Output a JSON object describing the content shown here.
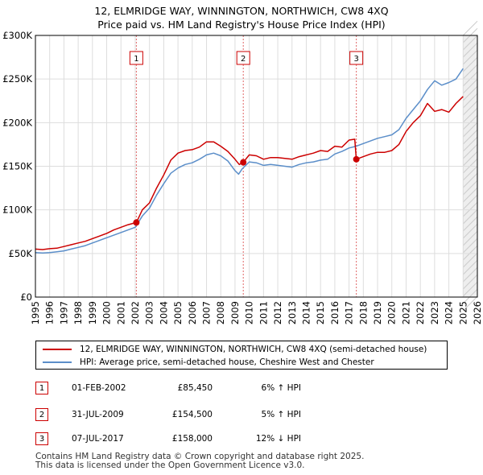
{
  "chart_data": {
    "type": "line",
    "title": "12, ELMRIDGE WAY, WINNINGTON, NORTHWICH, CW8 4XQ",
    "subtitle": "Price paid vs. HM Land Registry's House Price Index (HPI)",
    "xlim": [
      1995,
      2026
    ],
    "ylim": [
      0,
      300000
    ],
    "x_ticks": [
      1995,
      1996,
      1997,
      1998,
      1999,
      2000,
      2001,
      2002,
      2003,
      2004,
      2005,
      2006,
      2007,
      2008,
      2009,
      2010,
      2011,
      2012,
      2013,
      2014,
      2015,
      2016,
      2017,
      2018,
      2019,
      2020,
      2021,
      2022,
      2023,
      2024,
      2025,
      2026
    ],
    "x_tick_labels": [
      "1995",
      "1996",
      "1997",
      "1998",
      "1999",
      "2000",
      "2001",
      "2002",
      "2003",
      "2004",
      "2005",
      "2006",
      "2007",
      "2008",
      "2009",
      "2010",
      "2011",
      "2012",
      "2013",
      "2014",
      "2015",
      "2016",
      "2017",
      "2018",
      "2019",
      "2020",
      "2021",
      "2022",
      "2023",
      "2024",
      "2025",
      "2026"
    ],
    "y_ticks": [
      0,
      50000,
      100000,
      150000,
      200000,
      250000,
      300000
    ],
    "y_tick_labels": [
      "£0",
      "£50K",
      "£100K",
      "£150K",
      "£200K",
      "£250K",
      "£300K"
    ],
    "grid": true,
    "shaded_future_from": 2025.0,
    "series": [
      {
        "name": "12, ELMRIDGE WAY, WINNINGTON, NORTHWICH, CW8 4XQ (semi-detached house)",
        "color": "#cc0000",
        "x": [
          1995.0,
          1995.5,
          1996.0,
          1996.5,
          1997.0,
          1997.5,
          1998.0,
          1998.5,
          1999.0,
          1999.5,
          2000.0,
          2000.5,
          2001.0,
          2001.5,
          2002.08,
          2002.5,
          2003.0,
          2003.5,
          2004.0,
          2004.5,
          2005.0,
          2005.5,
          2006.0,
          2006.5,
          2007.0,
          2007.5,
          2008.0,
          2008.5,
          2009.0,
          2009.3,
          2009.58,
          2010.0,
          2010.5,
          2011.0,
          2011.5,
          2012.0,
          2012.5,
          2013.0,
          2013.5,
          2014.0,
          2014.5,
          2015.0,
          2015.5,
          2016.0,
          2016.5,
          2017.0,
          2017.4,
          2017.51,
          2018.0,
          2018.5,
          2019.0,
          2019.5,
          2020.0,
          2020.5,
          2021.0,
          2021.5,
          2022.0,
          2022.5,
          2023.0,
          2023.5,
          2024.0,
          2024.5,
          2025.0
        ],
        "y": [
          55000,
          54500,
          55500,
          56000,
          58000,
          60000,
          62000,
          64000,
          67000,
          70000,
          73000,
          77000,
          80000,
          83000,
          85450,
          100000,
          108000,
          125000,
          140000,
          157000,
          165000,
          168000,
          169000,
          172000,
          178000,
          178000,
          173000,
          167000,
          158000,
          152000,
          154500,
          163000,
          162000,
          158000,
          160000,
          160000,
          159000,
          158000,
          161000,
          163000,
          165000,
          168000,
          167000,
          173000,
          172000,
          180000,
          181000,
          158000,
          161000,
          164000,
          166000,
          166000,
          168000,
          175000,
          190000,
          200000,
          208000,
          222000,
          213000,
          215000,
          212000,
          222000,
          230000
        ]
      },
      {
        "name": "HPI: Average price, semi-detached house, Cheshire West and Chester",
        "color": "#5b8ec9",
        "x": [
          1995.0,
          1995.5,
          1996.0,
          1996.5,
          1997.0,
          1997.5,
          1998.0,
          1998.5,
          1999.0,
          1999.5,
          2000.0,
          2000.5,
          2001.0,
          2001.5,
          2002.0,
          2002.5,
          2003.0,
          2003.5,
          2004.0,
          2004.5,
          2005.0,
          2005.5,
          2006.0,
          2006.5,
          2007.0,
          2007.5,
          2008.0,
          2008.5,
          2009.0,
          2009.25,
          2009.5,
          2010.0,
          2010.5,
          2011.0,
          2011.5,
          2012.0,
          2012.5,
          2013.0,
          2013.5,
          2014.0,
          2014.5,
          2015.0,
          2015.5,
          2016.0,
          2016.5,
          2017.0,
          2017.5,
          2018.0,
          2018.5,
          2019.0,
          2019.5,
          2020.0,
          2020.5,
          2021.0,
          2021.5,
          2022.0,
          2022.5,
          2023.0,
          2023.5,
          2024.0,
          2024.5,
          2025.0
        ],
        "y": [
          51000,
          50500,
          51000,
          52000,
          53000,
          55000,
          57000,
          59000,
          62000,
          65000,
          68000,
          71000,
          74000,
          77000,
          80000,
          93000,
          102000,
          117000,
          130000,
          142000,
          148000,
          152000,
          154000,
          158000,
          163000,
          165000,
          162000,
          156000,
          145000,
          141000,
          147000,
          155000,
          154000,
          151000,
          152000,
          151000,
          150000,
          149000,
          152000,
          154000,
          155000,
          157000,
          158000,
          164000,
          167000,
          171000,
          173000,
          176000,
          179000,
          182000,
          184000,
          186000,
          192000,
          205000,
          215000,
          225000,
          238000,
          248000,
          243000,
          246000,
          250000,
          262000
        ]
      }
    ],
    "markers": [
      {
        "label": "1",
        "x": 2002.08,
        "y": 85450
      },
      {
        "label": "2",
        "x": 2009.58,
        "y": 154500
      },
      {
        "label": "3",
        "x": 2017.51,
        "y": 158000
      }
    ]
  },
  "legend": {
    "property_label": "12, ELMRIDGE WAY, WINNINGTON, NORTHWICH, CW8 4XQ (semi-detached house)",
    "hpi_label": "HPI: Average price, semi-detached house, Cheshire West and Chester",
    "property_color": "#cc0000",
    "hpi_color": "#5b8ec9"
  },
  "transactions": [
    {
      "num": "1",
      "date": "01-FEB-2002",
      "price": "£85,450",
      "hpi": "6% ↑ HPI"
    },
    {
      "num": "2",
      "date": "31-JUL-2009",
      "price": "£154,500",
      "hpi": "5% ↑ HPI"
    },
    {
      "num": "3",
      "date": "07-JUL-2017",
      "price": "£158,000",
      "hpi": "12% ↓ HPI"
    }
  ],
  "footer": {
    "line1": "Contains HM Land Registry data © Crown copyright and database right 2025.",
    "line2": "This data is licensed under the Open Government Licence v3.0."
  }
}
